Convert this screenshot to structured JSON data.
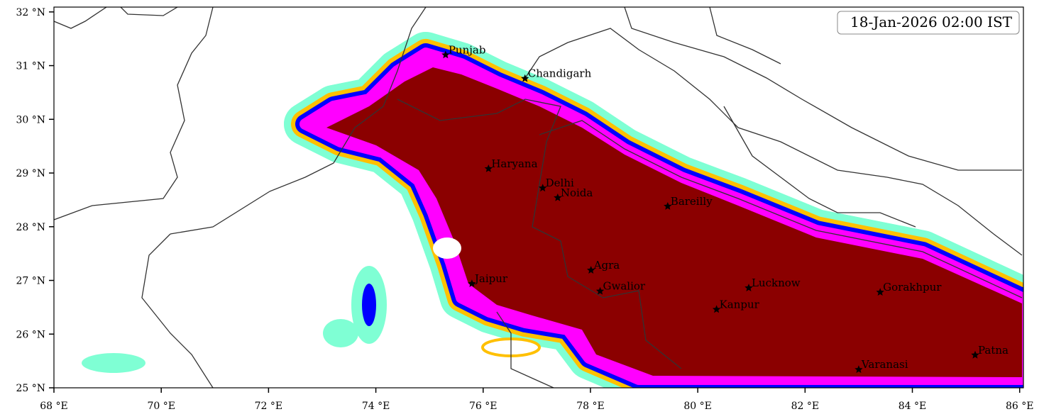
{
  "map": {
    "timestamp": "18-Jan-2026 02:00 IST",
    "xlim": [
      68,
      86.07
    ],
    "ylim": [
      25,
      32.09
    ],
    "xticks": [
      {
        "value": 68,
        "label": "68 °E"
      },
      {
        "value": 70,
        "label": "70 °E"
      },
      {
        "value": 72,
        "label": "72 °E"
      },
      {
        "value": 74,
        "label": "74 °E"
      },
      {
        "value": 76,
        "label": "76 °E"
      },
      {
        "value": 78,
        "label": "78 °E"
      },
      {
        "value": 80,
        "label": "80 °E"
      },
      {
        "value": 82,
        "label": "82 °E"
      },
      {
        "value": 84,
        "label": "84 °E"
      },
      {
        "value": 86,
        "label": "86 °E"
      }
    ],
    "yticks": [
      {
        "value": 25,
        "label": "25 °N"
      },
      {
        "value": 26,
        "label": "26 °N"
      },
      {
        "value": 27,
        "label": "27 °N"
      },
      {
        "value": 28,
        "label": "28 °N"
      },
      {
        "value": 29,
        "label": "29 °N"
      },
      {
        "value": 30,
        "label": "30 °N"
      },
      {
        "value": 31,
        "label": "31 °N"
      },
      {
        "value": 32,
        "label": "32 °N"
      }
    ],
    "cities": [
      {
        "name": "Punjab",
        "lon": 75.3,
        "lat": 31.2
      },
      {
        "name": "Chandigarh",
        "lon": 76.78,
        "lat": 30.76
      },
      {
        "name": "Haryana",
        "lon": 76.1,
        "lat": 29.08
      },
      {
        "name": "Delhi",
        "lon": 77.11,
        "lat": 28.72
      },
      {
        "name": "Noida",
        "lon": 77.39,
        "lat": 28.54
      },
      {
        "name": "Bareilly",
        "lon": 79.44,
        "lat": 28.38
      },
      {
        "name": "Agra",
        "lon": 78.01,
        "lat": 27.19
      },
      {
        "name": "Jaipur",
        "lon": 75.79,
        "lat": 26.94
      },
      {
        "name": "Gwalior",
        "lon": 78.18,
        "lat": 26.8
      },
      {
        "name": "Lucknow",
        "lon": 80.95,
        "lat": 26.86
      },
      {
        "name": "Kanpur",
        "lon": 80.35,
        "lat": 26.46
      },
      {
        "name": "Gorakhpur",
        "lon": 83.4,
        "lat": 26.78
      },
      {
        "name": "Varanasi",
        "lon": 83.0,
        "lat": 25.34
      },
      {
        "name": "Patna",
        "lon": 85.17,
        "lat": 25.61
      }
    ]
  }
}
